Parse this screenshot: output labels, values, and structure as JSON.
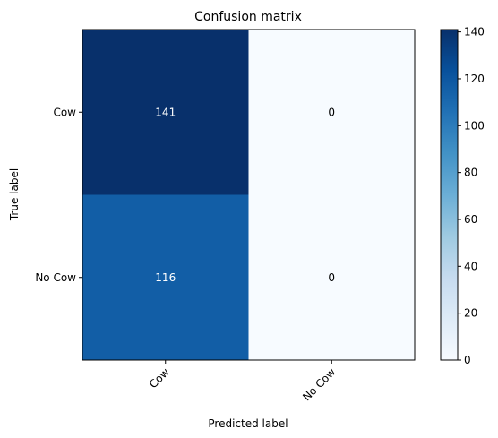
{
  "chart_data": {
    "type": "heatmap",
    "title": "Confusion matrix",
    "xlabel": "Predicted label",
    "ylabel": "True label",
    "x_categories": [
      "Cow",
      "No Cow"
    ],
    "y_categories": [
      "Cow",
      "No Cow"
    ],
    "values": [
      [
        141,
        0
      ],
      [
        116,
        0
      ]
    ],
    "value_labels": [
      [
        "141",
        "0"
      ],
      [
        "116",
        "0"
      ]
    ],
    "colormap": "Blues",
    "color_low": "#f7fbff",
    "color_high": "#08306b",
    "colorbar": {
      "range": [
        0,
        141
      ],
      "ticks": [
        0,
        20,
        40,
        60,
        80,
        100,
        120,
        140
      ],
      "tick_labels": [
        "0",
        "20",
        "40",
        "60",
        "80",
        "100",
        "120",
        "140"
      ]
    },
    "grid": false
  }
}
